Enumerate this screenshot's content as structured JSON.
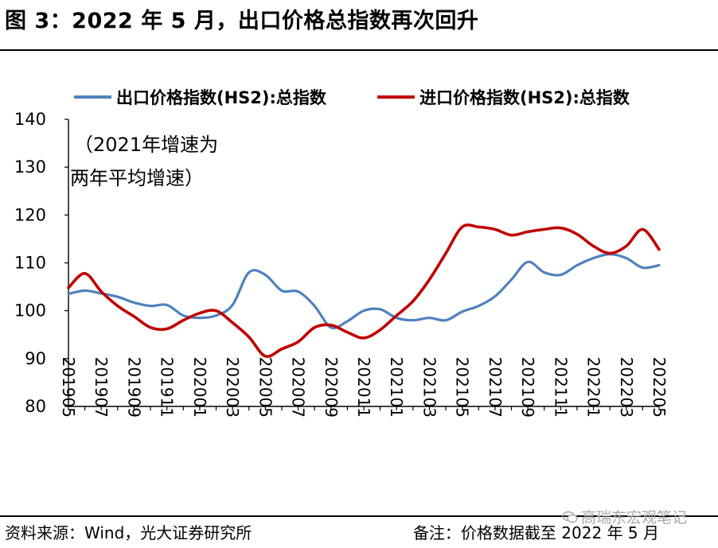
{
  "figure_title": "图 3：2022 年 5 月，出口价格总指数再次回升",
  "source": "资料来源：Wind，光大证券研究所",
  "remark": "备注：价格数据截至 2022 年 5 月",
  "watermark": "高瑞东宏观笔记",
  "colors": {
    "export": "#4f81bd",
    "import": "#c00000"
  },
  "chart_data": {
    "type": "line",
    "title": "",
    "xlabel": "",
    "ylabel": "",
    "ylim": [
      80,
      140
    ],
    "yticks": [
      "80",
      "90",
      "100",
      "110",
      "120",
      "130",
      "140"
    ],
    "grid": false,
    "legend_position": "top",
    "annotation": [
      "（2021年增速为",
      "两年平均增速）"
    ],
    "x": [
      "201905",
      "201906",
      "201907",
      "201908",
      "201909",
      "201910",
      "201911",
      "201912",
      "202001",
      "202002",
      "202003",
      "202004",
      "202005",
      "202006",
      "202007",
      "202008",
      "202009",
      "202010",
      "202011",
      "202012",
      "202101",
      "202102",
      "202103",
      "202104",
      "202105",
      "202106",
      "202107",
      "202108",
      "202109",
      "202110",
      "202111",
      "202112",
      "202201",
      "202202",
      "202203",
      "202204",
      "202205"
    ],
    "xtick_labels": [
      "201905",
      "201907",
      "201909",
      "201911",
      "202001",
      "202003",
      "202005",
      "202007",
      "202009",
      "202011",
      "202101",
      "202103",
      "202105",
      "202107",
      "202109",
      "202111",
      "202201",
      "202203",
      "202205"
    ],
    "series": [
      {
        "name": "出口价格指数(HS2):总指数",
        "color": "#4f81bd",
        "values": [
          103.5,
          104.2,
          103.6,
          102.9,
          101.7,
          101.0,
          101.2,
          99.0,
          98.5,
          99.0,
          101.2,
          108.0,
          107.5,
          104.2,
          104.0,
          101.0,
          96.5,
          97.8,
          100.0,
          100.3,
          98.5,
          98.0,
          98.5,
          98.0,
          99.8,
          101.0,
          103.0,
          106.5,
          110.2,
          108.0,
          107.5,
          109.5,
          111.0,
          111.8,
          111.0,
          109.0,
          109.5
        ]
      },
      {
        "name": "进口价格指数(HS2):总指数",
        "color": "#c00000",
        "values": [
          104.8,
          107.8,
          104.0,
          101.0,
          98.8,
          96.5,
          96.2,
          98.0,
          99.5,
          100.0,
          97.5,
          94.5,
          90.5,
          92.0,
          93.5,
          96.5,
          97.0,
          95.5,
          94.3,
          96.0,
          99.0,
          102.0,
          106.5,
          112.0,
          117.5,
          117.5,
          117.0,
          115.8,
          116.5,
          117.0,
          117.3,
          116.0,
          113.5,
          112.0,
          113.5,
          117.0,
          112.8
        ]
      }
    ]
  }
}
